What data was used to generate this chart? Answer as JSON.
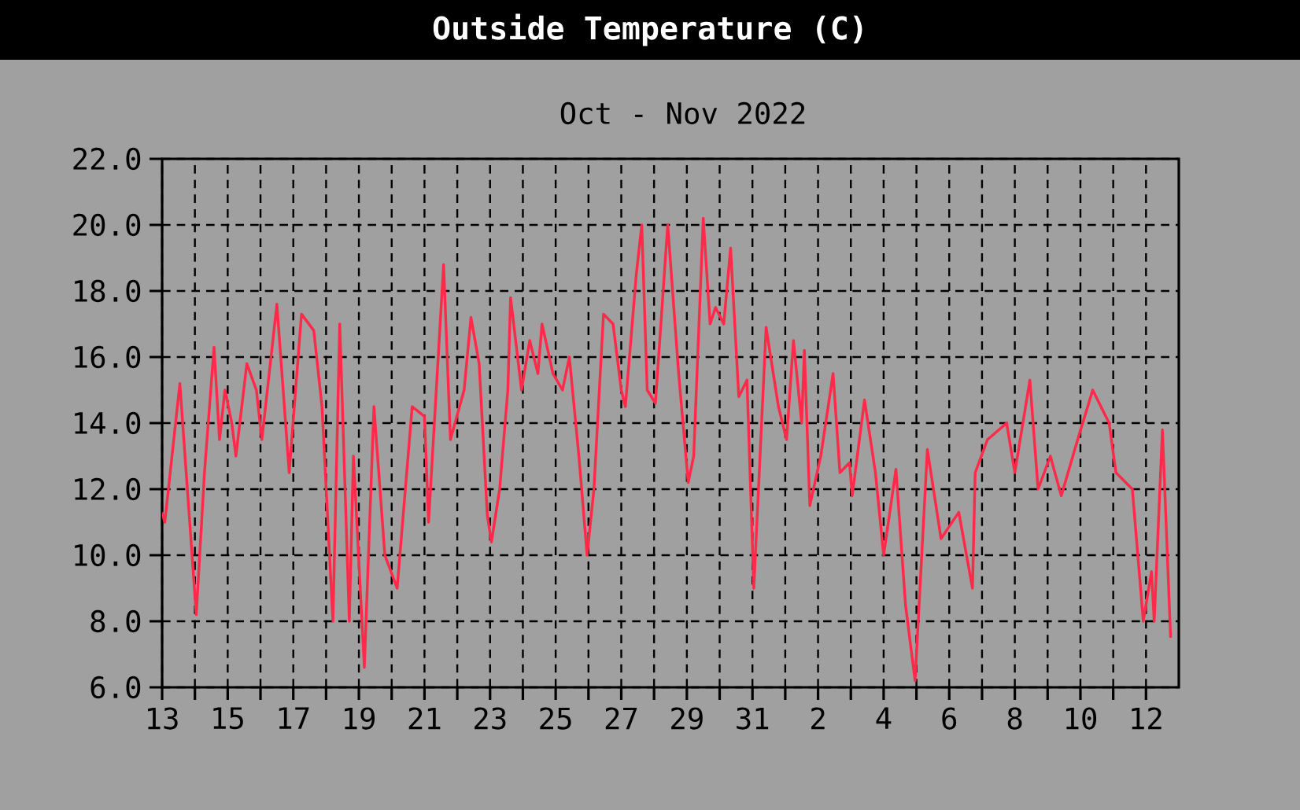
{
  "chart_data": {
    "type": "line",
    "title": "Outside Temperature (C)",
    "subtitle": "Oct - Nov  2022",
    "color": "#ff2a4a",
    "grid": true,
    "xlim": [
      "2022-10-13",
      "2022-11-13"
    ],
    "ylim": [
      6,
      22
    ],
    "yticks": [
      {
        "value": 6,
        "label": "6.0"
      },
      {
        "value": 8,
        "label": "8.0"
      },
      {
        "value": 10,
        "label": "10.0"
      },
      {
        "value": 12,
        "label": "12.0"
      },
      {
        "value": 14,
        "label": "14.0"
      },
      {
        "value": 16,
        "label": "16.0"
      },
      {
        "value": 18,
        "label": "18.0"
      },
      {
        "value": 20,
        "label": "20.0"
      },
      {
        "value": 22,
        "label": "22.0"
      }
    ],
    "xticks": [
      {
        "value": "2022-10-13",
        "label": "13"
      },
      {
        "value": "2022-10-14",
        "label": null
      },
      {
        "value": "2022-10-15",
        "label": "15"
      },
      {
        "value": "2022-10-16",
        "label": null
      },
      {
        "value": "2022-10-17",
        "label": "17"
      },
      {
        "value": "2022-10-18",
        "label": null
      },
      {
        "value": "2022-10-19",
        "label": "19"
      },
      {
        "value": "2022-10-20",
        "label": null
      },
      {
        "value": "2022-10-21",
        "label": "21"
      },
      {
        "value": "2022-10-22",
        "label": null
      },
      {
        "value": "2022-10-23",
        "label": "23"
      },
      {
        "value": "2022-10-24",
        "label": null
      },
      {
        "value": "2022-10-25",
        "label": "25"
      },
      {
        "value": "2022-10-26",
        "label": null
      },
      {
        "value": "2022-10-27",
        "label": "27"
      },
      {
        "value": "2022-10-28",
        "label": null
      },
      {
        "value": "2022-10-29",
        "label": "29"
      },
      {
        "value": "2022-10-30",
        "label": null
      },
      {
        "value": "2022-10-31",
        "label": "31"
      },
      {
        "value": "2022-11-01",
        "label": null
      },
      {
        "value": "2022-11-02",
        "label": "2"
      },
      {
        "value": "2022-11-03",
        "label": null
      },
      {
        "value": "2022-11-04",
        "label": "4"
      },
      {
        "value": "2022-11-05",
        "label": null
      },
      {
        "value": "2022-11-06",
        "label": "6"
      },
      {
        "value": "2022-11-07",
        "label": null
      },
      {
        "value": "2022-11-08",
        "label": "8"
      },
      {
        "value": "2022-11-09",
        "label": null
      },
      {
        "value": "2022-11-10",
        "label": "10"
      },
      {
        "value": "2022-11-11",
        "label": null
      },
      {
        "value": "2022-11-12",
        "label": "12"
      }
    ],
    "x": [
      "2022-10-13T00:00",
      "2022-10-13T02:00",
      "2022-10-13T13:00",
      "2022-10-14T01:00",
      "2022-10-14T07:00",
      "2022-10-14T14:00",
      "2022-10-14T18:00",
      "2022-10-14T22:00",
      "2022-10-15T03:00",
      "2022-10-15T06:00",
      "2022-10-15T14:00",
      "2022-10-15T21:00",
      "2022-10-16T01:00",
      "2022-10-16T12:00",
      "2022-10-16T21:00",
      "2022-10-17T06:00",
      "2022-10-17T15:00",
      "2022-10-17T21:00",
      "2022-10-18T05:00",
      "2022-10-18T10:00",
      "2022-10-18T17:00",
      "2022-10-18T20:00",
      "2022-10-19T04:00",
      "2022-10-19T11:00",
      "2022-10-19T19:00",
      "2022-10-20T04:00",
      "2022-10-20T15:00",
      "2022-10-21T00:00",
      "2022-10-21T03:00",
      "2022-10-21T14:00",
      "2022-10-21T19:00",
      "2022-10-22T05:00",
      "2022-10-22T10:00",
      "2022-10-22T16:00",
      "2022-10-22T22:00",
      "2022-10-23T01:00",
      "2022-10-23T07:00",
      "2022-10-23T13:00",
      "2022-10-23T15:00",
      "2022-10-23T23:00",
      "2022-10-24T05:00",
      "2022-10-24T11:00",
      "2022-10-24T14:00",
      "2022-10-24T22:00",
      "2022-10-25T05:00",
      "2022-10-25T10:00",
      "2022-10-25T17:00",
      "2022-10-25T23:00",
      "2022-10-26T04:00",
      "2022-10-26T11:00",
      "2022-10-26T18:00",
      "2022-10-27T00:00",
      "2022-10-27T03:00",
      "2022-10-27T11:00",
      "2022-10-27T15:00",
      "2022-10-27T19:00",
      "2022-10-28T01:00",
      "2022-10-28T10:00",
      "2022-10-28T18:00",
      "2022-10-29T01:00",
      "2022-10-29T05:00",
      "2022-10-29T12:00",
      "2022-10-29T17:00",
      "2022-10-29T21:00",
      "2022-10-30T03:00",
      "2022-10-30T08:00",
      "2022-10-30T14:00",
      "2022-10-30T20:00",
      "2022-10-31T01:00",
      "2022-10-31T10:00",
      "2022-10-31T19:00",
      "2022-11-01T01:00",
      "2022-11-01T06:00",
      "2022-11-01T12:00",
      "2022-11-01T14:00",
      "2022-11-01T18:00",
      "2022-11-02T02:00",
      "2022-11-02T11:00",
      "2022-11-02T16:00",
      "2022-11-02T23:00",
      "2022-11-03T01:00",
      "2022-11-03T10:00",
      "2022-11-03T18:00",
      "2022-11-04T00:00",
      "2022-11-04T09:00",
      "2022-11-04T16:00",
      "2022-11-04T23:00",
      "2022-11-05T08:00",
      "2022-11-05T18:00",
      "2022-11-06T07:00",
      "2022-11-06T17:00",
      "2022-11-06T19:00",
      "2022-11-07T04:00",
      "2022-11-07T18:00",
      "2022-11-08T00:00",
      "2022-11-08T11:00",
      "2022-11-08T17:00",
      "2022-11-09T02:00",
      "2022-11-09T10:00",
      "2022-11-09T22:00",
      "2022-11-10T09:00",
      "2022-11-10T21:00",
      "2022-11-11T02:00",
      "2022-11-11T14:00",
      "2022-11-11T22:00",
      "2022-11-12T04:00",
      "2022-11-12T06:00",
      "2022-11-12T12:00",
      "2022-11-12T18:00"
    ],
    "values": [
      11.3,
      11.0,
      15.2,
      8.2,
      12.5,
      16.3,
      13.5,
      15.0,
      14.0,
      13.0,
      15.8,
      15.0,
      13.5,
      17.6,
      12.5,
      17.3,
      16.8,
      14.5,
      8.0,
      17.0,
      8.0,
      13.0,
      6.6,
      14.5,
      10.0,
      9.0,
      14.5,
      14.2,
      11.0,
      18.8,
      13.5,
      15.0,
      17.2,
      15.8,
      11.2,
      10.4,
      12.0,
      15.0,
      17.8,
      15.0,
      16.5,
      15.5,
      17.0,
      15.5,
      15.0,
      16.0,
      13.0,
      10.0,
      12.0,
      17.3,
      17.0,
      15.0,
      14.5,
      18.5,
      20.0,
      15.0,
      14.6,
      20.0,
      15.5,
      12.2,
      13.0,
      20.2,
      17.0,
      17.5,
      17.0,
      19.3,
      14.8,
      15.3,
      9.0,
      16.9,
      14.5,
      13.5,
      16.5,
      14.0,
      16.2,
      11.5,
      13.0,
      15.5,
      12.5,
      12.8,
      11.8,
      14.7,
      12.5,
      10.0,
      12.6,
      8.5,
      6.2,
      13.2,
      10.5,
      11.3,
      9.0,
      12.5,
      13.5,
      14.0,
      12.5,
      15.3,
      12.0,
      13.0,
      11.8,
      13.5,
      15.0,
      14.0,
      12.5,
      12.0,
      8.0,
      9.5,
      8.0,
      13.8,
      7.5
    ]
  }
}
